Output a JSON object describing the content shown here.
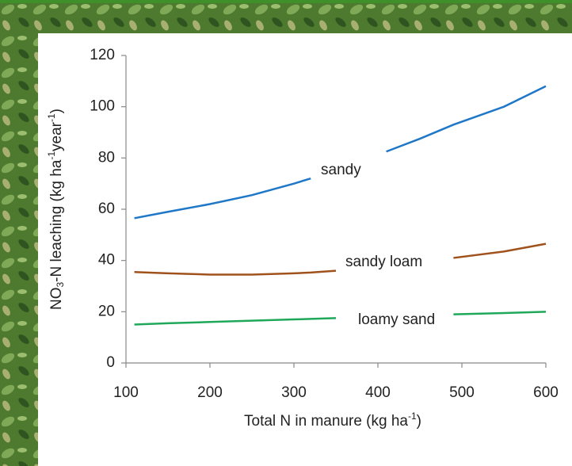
{
  "chart_data": {
    "type": "line",
    "y_label_parts": [
      "NO",
      "3",
      "-N leaching (kg ha",
      "-1",
      "year",
      "-1",
      ")"
    ],
    "x_label_parts": [
      "Total N in manure (kg ha",
      "-1",
      ")"
    ],
    "x": [
      110,
      150,
      200,
      250,
      300,
      320,
      350,
      410,
      450,
      490,
      550,
      600
    ],
    "series": [
      {
        "name": "sandy",
        "color": "#1f77c8",
        "values": [
          56.5,
          59,
          62,
          65.5,
          70,
          72,
          null,
          82.5,
          87.5,
          93,
          100,
          108
        ]
      },
      {
        "name": "sandy loam",
        "color": "#a0521d",
        "values": [
          35.5,
          35,
          34.5,
          34.5,
          35,
          35.3,
          36,
          null,
          null,
          41,
          43.5,
          46.5
        ]
      },
      {
        "name": "loamy sand",
        "color": "#1fa85a",
        "values": [
          15,
          15.5,
          16,
          16.5,
          17,
          17.2,
          17.5,
          null,
          null,
          19,
          19.5,
          20
        ]
      }
    ],
    "xlim": [
      100,
      600
    ],
    "ylim": [
      0,
      120
    ],
    "xticks": [
      100,
      200,
      300,
      400,
      500,
      600
    ],
    "yticks": [
      0,
      20,
      40,
      60,
      80,
      100,
      120
    ]
  }
}
